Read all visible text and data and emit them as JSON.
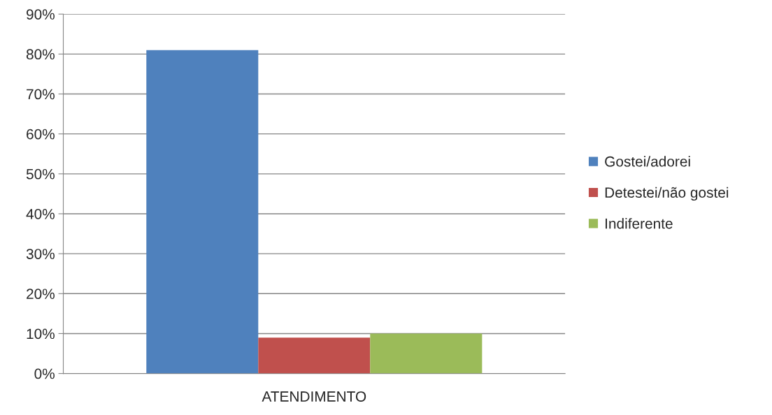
{
  "chart_data": {
    "type": "bar",
    "categories": [
      "ATENDIMENTO"
    ],
    "series": [
      {
        "name": "Gostei/adorei",
        "color": "#4f81bd",
        "values": [
          81
        ]
      },
      {
        "name": "Detestei/não gostei",
        "color": "#c0504d",
        "values": [
          9
        ]
      },
      {
        "name": "Indiferente",
        "color": "#9bbb59",
        "values": [
          10
        ]
      }
    ],
    "ylim": [
      0,
      90
    ],
    "yticks": [
      {
        "value": 0,
        "label": "0%"
      },
      {
        "value": 10,
        "label": "10%"
      },
      {
        "value": 20,
        "label": "20%"
      },
      {
        "value": 30,
        "label": "30%"
      },
      {
        "value": 40,
        "label": "40%"
      },
      {
        "value": 50,
        "label": "50%"
      },
      {
        "value": 60,
        "label": "60%"
      },
      {
        "value": 70,
        "label": "70%"
      },
      {
        "value": 80,
        "label": "80%"
      },
      {
        "value": 90,
        "label": "90%"
      }
    ],
    "grid": "y",
    "legend": "right"
  }
}
